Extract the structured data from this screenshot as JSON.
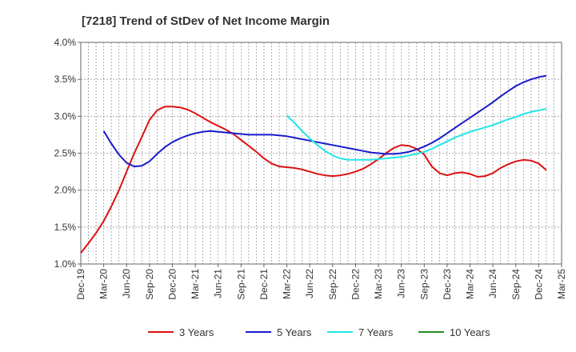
{
  "chart_data": {
    "type": "line",
    "title": "[7218]  Trend of StDev of Net Income Margin",
    "xlabel": "",
    "ylabel": "",
    "x_ticks": [
      "Dec-19",
      "Mar-20",
      "Jun-20",
      "Sep-20",
      "Dec-20",
      "Mar-21",
      "Jun-21",
      "Sep-21",
      "Dec-21",
      "Mar-22",
      "Jun-22",
      "Sep-22",
      "Dec-22",
      "Mar-23",
      "Jun-23",
      "Sep-23",
      "Dec-23",
      "Mar-24",
      "Jun-24",
      "Sep-24",
      "Dec-24",
      "Mar-25"
    ],
    "y_ticks": [
      "1.0%",
      "1.5%",
      "2.0%",
      "2.5%",
      "3.0%",
      "3.5%",
      "4.0%"
    ],
    "ylim": [
      1.0,
      4.0
    ],
    "grid": true,
    "legend_position": "bottom",
    "series": [
      {
        "name": "3 Years",
        "color": "#dd1111",
        "points": [
          [
            "Dec-19",
            1.15
          ],
          [
            "Jan-20",
            1.28
          ],
          [
            "Feb-20",
            1.42
          ],
          [
            "Mar-20",
            1.58
          ],
          [
            "Apr-20",
            1.78
          ],
          [
            "May-20",
            2.0
          ],
          [
            "Jun-20",
            2.25
          ],
          [
            "Jul-20",
            2.5
          ],
          [
            "Aug-20",
            2.72
          ],
          [
            "Sep-20",
            2.95
          ],
          [
            "Oct-20",
            3.08
          ],
          [
            "Nov-20",
            3.13
          ],
          [
            "Dec-20",
            3.13
          ],
          [
            "Jan-21",
            3.12
          ],
          [
            "Feb-21",
            3.09
          ],
          [
            "Mar-21",
            3.04
          ],
          [
            "Apr-21",
            2.98
          ],
          [
            "May-21",
            2.92
          ],
          [
            "Jun-21",
            2.87
          ],
          [
            "Jul-21",
            2.82
          ],
          [
            "Aug-21",
            2.76
          ],
          [
            "Sep-21",
            2.68
          ],
          [
            "Oct-21",
            2.6
          ],
          [
            "Nov-21",
            2.52
          ],
          [
            "Dec-21",
            2.43
          ],
          [
            "Jan-22",
            2.36
          ],
          [
            "Feb-22",
            2.32
          ],
          [
            "Mar-22",
            2.31
          ],
          [
            "Apr-22",
            2.3
          ],
          [
            "May-22",
            2.28
          ],
          [
            "Jun-22",
            2.25
          ],
          [
            "Jul-22",
            2.22
          ],
          [
            "Aug-22",
            2.2
          ],
          [
            "Sep-22",
            2.19
          ],
          [
            "Oct-22",
            2.2
          ],
          [
            "Nov-22",
            2.22
          ],
          [
            "Dec-22",
            2.25
          ],
          [
            "Jan-23",
            2.29
          ],
          [
            "Feb-23",
            2.35
          ],
          [
            "Mar-23",
            2.42
          ],
          [
            "Apr-23",
            2.5
          ],
          [
            "May-23",
            2.57
          ],
          [
            "Jun-23",
            2.61
          ],
          [
            "Jul-23",
            2.6
          ],
          [
            "Aug-23",
            2.56
          ],
          [
            "Sep-23",
            2.48
          ],
          [
            "Oct-23",
            2.32
          ],
          [
            "Nov-23",
            2.23
          ],
          [
            "Dec-23",
            2.2
          ],
          [
            "Jan-24",
            2.23
          ],
          [
            "Feb-24",
            2.24
          ],
          [
            "Mar-24",
            2.22
          ],
          [
            "Apr-24",
            2.18
          ],
          [
            "May-24",
            2.19
          ],
          [
            "Jun-24",
            2.23
          ],
          [
            "Jul-24",
            2.3
          ],
          [
            "Aug-24",
            2.35
          ],
          [
            "Sep-24",
            2.39
          ],
          [
            "Oct-24",
            2.41
          ],
          [
            "Nov-24",
            2.4
          ],
          [
            "Dec-24",
            2.36
          ],
          [
            "Jan-25",
            2.27
          ]
        ]
      },
      {
        "name": "5 Years",
        "color": "#1a1acc",
        "points": [
          [
            "Mar-20",
            2.8
          ],
          [
            "Apr-20",
            2.63
          ],
          [
            "May-20",
            2.48
          ],
          [
            "Jun-20",
            2.37
          ],
          [
            "Jul-20",
            2.32
          ],
          [
            "Aug-20",
            2.33
          ],
          [
            "Sep-20",
            2.39
          ],
          [
            "Oct-20",
            2.49
          ],
          [
            "Nov-20",
            2.58
          ],
          [
            "Dec-20",
            2.65
          ],
          [
            "Jan-21",
            2.7
          ],
          [
            "Feb-21",
            2.74
          ],
          [
            "Mar-21",
            2.77
          ],
          [
            "Apr-21",
            2.79
          ],
          [
            "May-21",
            2.8
          ],
          [
            "Jun-21",
            2.79
          ],
          [
            "Jul-21",
            2.78
          ],
          [
            "Aug-21",
            2.77
          ],
          [
            "Sep-21",
            2.76
          ],
          [
            "Oct-21",
            2.75
          ],
          [
            "Nov-21",
            2.75
          ],
          [
            "Dec-21",
            2.75
          ],
          [
            "Jan-22",
            2.75
          ],
          [
            "Feb-22",
            2.74
          ],
          [
            "Mar-22",
            2.73
          ],
          [
            "Apr-22",
            2.71
          ],
          [
            "May-22",
            2.69
          ],
          [
            "Jun-22",
            2.67
          ],
          [
            "Jul-22",
            2.65
          ],
          [
            "Aug-22",
            2.63
          ],
          [
            "Sep-22",
            2.61
          ],
          [
            "Oct-22",
            2.59
          ],
          [
            "Nov-22",
            2.57
          ],
          [
            "Dec-22",
            2.55
          ],
          [
            "Jan-23",
            2.53
          ],
          [
            "Feb-23",
            2.51
          ],
          [
            "Mar-23",
            2.5
          ],
          [
            "Apr-23",
            2.49
          ],
          [
            "May-23",
            2.49
          ],
          [
            "Jun-23",
            2.5
          ],
          [
            "Jul-23",
            2.52
          ],
          [
            "Aug-23",
            2.55
          ],
          [
            "Sep-23",
            2.59
          ],
          [
            "Oct-23",
            2.64
          ],
          [
            "Nov-23",
            2.7
          ],
          [
            "Dec-23",
            2.77
          ],
          [
            "Jan-24",
            2.84
          ],
          [
            "Feb-24",
            2.91
          ],
          [
            "Mar-24",
            2.98
          ],
          [
            "Apr-24",
            3.05
          ],
          [
            "May-24",
            3.12
          ],
          [
            "Jun-24",
            3.19
          ],
          [
            "Jul-24",
            3.27
          ],
          [
            "Aug-24",
            3.34
          ],
          [
            "Sep-24",
            3.41
          ],
          [
            "Oct-24",
            3.46
          ],
          [
            "Nov-24",
            3.5
          ],
          [
            "Dec-24",
            3.53
          ],
          [
            "Jan-25",
            3.55
          ]
        ]
      },
      {
        "name": "7 Years",
        "color": "#22e5e5",
        "points": [
          [
            "Mar-22",
            3.01
          ],
          [
            "Apr-22",
            2.91
          ],
          [
            "May-22",
            2.8
          ],
          [
            "Jun-22",
            2.7
          ],
          [
            "Jul-22",
            2.61
          ],
          [
            "Aug-22",
            2.53
          ],
          [
            "Sep-22",
            2.47
          ],
          [
            "Oct-22",
            2.43
          ],
          [
            "Nov-22",
            2.41
          ],
          [
            "Dec-22",
            2.41
          ],
          [
            "Jan-23",
            2.41
          ],
          [
            "Feb-23",
            2.41
          ],
          [
            "Mar-23",
            2.42
          ],
          [
            "Apr-23",
            2.43
          ],
          [
            "May-23",
            2.44
          ],
          [
            "Jun-23",
            2.45
          ],
          [
            "Jul-23",
            2.47
          ],
          [
            "Aug-23",
            2.49
          ],
          [
            "Sep-23",
            2.52
          ],
          [
            "Oct-23",
            2.56
          ],
          [
            "Nov-23",
            2.61
          ],
          [
            "Dec-23",
            2.66
          ],
          [
            "Jan-24",
            2.71
          ],
          [
            "Feb-24",
            2.75
          ],
          [
            "Mar-24",
            2.79
          ],
          [
            "Apr-24",
            2.82
          ],
          [
            "May-24",
            2.85
          ],
          [
            "Jun-24",
            2.88
          ],
          [
            "Jul-24",
            2.92
          ],
          [
            "Aug-24",
            2.96
          ],
          [
            "Sep-24",
            2.99
          ],
          [
            "Oct-24",
            3.03
          ],
          [
            "Nov-24",
            3.06
          ],
          [
            "Dec-24",
            3.08
          ],
          [
            "Jan-25",
            3.1
          ]
        ]
      },
      {
        "name": "10 Years",
        "color": "#228b22",
        "points": []
      }
    ]
  }
}
